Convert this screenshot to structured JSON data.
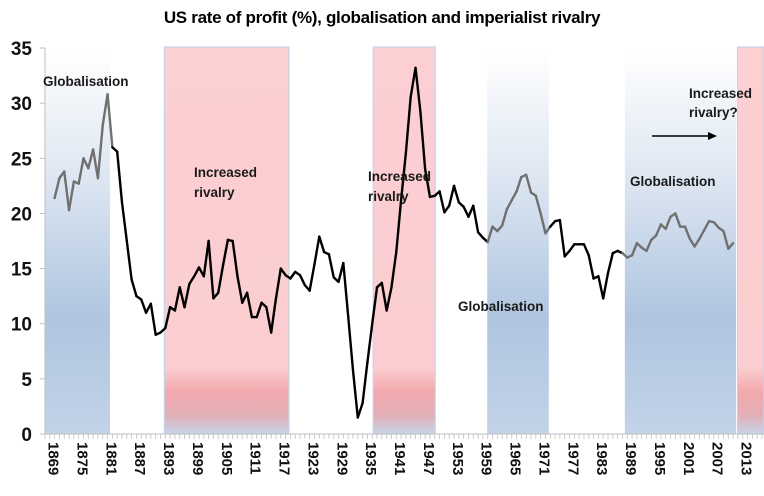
{
  "chart_data": {
    "type": "line",
    "title": "US rate of profit (%), globalisation and imperialist rivalry",
    "xlabel": "",
    "ylabel": "",
    "ylim": [
      0,
      35
    ],
    "xlim": [
      1867,
      2016
    ],
    "yticks": [
      0,
      5,
      10,
      15,
      20,
      25,
      30,
      35
    ],
    "xticks": [
      "1869",
      "1875",
      "1881",
      "1887",
      "1893",
      "1899",
      "1905",
      "1911",
      "1917",
      "1923",
      "1929",
      "1935",
      "1941",
      "1947",
      "1953",
      "1959",
      "1965",
      "1971",
      "1977",
      "1983",
      "1989",
      "1995",
      "2001",
      "2007",
      "2013"
    ],
    "grid": false,
    "legend": "none",
    "colors": {
      "line_default": "#000000",
      "line_globalisation": "#707070",
      "band_globalisation": "#b3c7e0",
      "band_rivalry": "#fccfd2",
      "band_rivalry_dark": "#f1a7ab"
    },
    "series": [
      {
        "name": "US rate of profit (%)",
        "x": [
          1869,
          1870,
          1871,
          1872,
          1873,
          1874,
          1875,
          1876,
          1877,
          1878,
          1879,
          1880,
          1881,
          1882,
          1883,
          1884,
          1885,
          1886,
          1887,
          1888,
          1889,
          1890,
          1891,
          1892,
          1893,
          1894,
          1895,
          1896,
          1897,
          1898,
          1899,
          1900,
          1901,
          1902,
          1903,
          1904,
          1905,
          1906,
          1907,
          1908,
          1909,
          1910,
          1911,
          1912,
          1913,
          1914,
          1915,
          1916,
          1917,
          1918,
          1919,
          1920,
          1921,
          1922,
          1923,
          1924,
          1925,
          1926,
          1927,
          1928,
          1929,
          1930,
          1931,
          1932,
          1933,
          1934,
          1935,
          1936,
          1937,
          1938,
          1939,
          1940,
          1941,
          1942,
          1943,
          1944,
          1945,
          1946,
          1947,
          1948,
          1949,
          1950,
          1951,
          1952,
          1953,
          1954,
          1955,
          1956,
          1957,
          1958,
          1959,
          1960,
          1961,
          1962,
          1963,
          1964,
          1965,
          1966,
          1967,
          1968,
          1969,
          1970,
          1971,
          1972,
          1973,
          1974,
          1975,
          1976,
          1977,
          1978,
          1979,
          1980,
          1981,
          1982,
          1983,
          1984,
          1985,
          1986,
          1987,
          1988,
          1989,
          1990,
          1991,
          1992,
          1993,
          1994,
          1995,
          1996,
          1997,
          1998,
          1999,
          2000,
          2001,
          2002,
          2003,
          2004,
          2005,
          2006,
          2007,
          2008,
          2009,
          2010
        ],
        "values": [
          21.4,
          23.2,
          23.8,
          20.3,
          22.9,
          22.7,
          25.0,
          24.1,
          25.8,
          23.2,
          28.0,
          30.8,
          26.0,
          25.6,
          21.0,
          17.5,
          14.0,
          12.5,
          12.2,
          11.0,
          11.8,
          9.0,
          9.2,
          9.6,
          11.5,
          11.2,
          13.3,
          11.5,
          13.6,
          14.3,
          15.1,
          14.3,
          17.5,
          12.3,
          12.8,
          15.3,
          17.6,
          17.5,
          14.3,
          11.9,
          12.8,
          10.6,
          10.6,
          11.9,
          11.5,
          9.2,
          12.3,
          15.0,
          14.4,
          14.1,
          14.7,
          14.4,
          13.5,
          13.0,
          15.4,
          17.9,
          16.5,
          16.3,
          14.2,
          13.8,
          15.5,
          10.7,
          5.8,
          1.5,
          2.8,
          6.5,
          10.0,
          13.3,
          13.7,
          11.2,
          13.3,
          16.5,
          21.2,
          25.5,
          30.6,
          33.2,
          29.3,
          24.0,
          21.5,
          21.6,
          22.0,
          20.1,
          20.7,
          22.5,
          21.0,
          20.6,
          19.7,
          20.7,
          18.3,
          17.8,
          17.4,
          18.8,
          18.4,
          18.9,
          20.4,
          21.2,
          22.0,
          23.3,
          23.5,
          21.9,
          21.6,
          20.0,
          18.2,
          18.8,
          19.3,
          19.4,
          16.1,
          16.6,
          17.2,
          17.2,
          17.2,
          16.2,
          14.1,
          14.3,
          12.3,
          14.6,
          16.4,
          16.6,
          16.4,
          16.0,
          16.2,
          17.3,
          16.9,
          16.6,
          17.6,
          18.0,
          19.0,
          18.6,
          19.7,
          20.0,
          18.8,
          18.8,
          17.7,
          17.0,
          17.7,
          18.5,
          19.3,
          19.2,
          18.7,
          18.4,
          16.8,
          17.3
        ]
      }
    ],
    "bands": [
      {
        "type": "globalisation",
        "from": 1867,
        "to": 1880.5,
        "label": "Globalisation"
      },
      {
        "type": "rivalry",
        "from": 1891.8,
        "to": 1917.7,
        "label": "Increased rivalry"
      },
      {
        "type": "rivalry",
        "from": 1935.2,
        "to": 1948.1,
        "label": "Increased rivalry"
      },
      {
        "type": "globalisation",
        "from": 1958.9,
        "to": 1971.7,
        "label": "Globalisation"
      },
      {
        "type": "globalisation",
        "from": 1987.5,
        "to": 2010.6,
        "label": "Globalisation"
      },
      {
        "type": "rivalry",
        "from": 2010.9,
        "to": 2018,
        "label": "Increased rivalry?"
      }
    ],
    "annotations": [
      {
        "id": "glob-1",
        "lines": [
          "Globalisation"
        ]
      },
      {
        "id": "rivalry-1",
        "lines": [
          "Increased",
          "rivalry"
        ]
      },
      {
        "id": "rivalry-2",
        "lines": [
          "Increased",
          "rivalry"
        ]
      },
      {
        "id": "glob-2",
        "lines": [
          "Globalisation"
        ]
      },
      {
        "id": "glob-3",
        "lines": [
          "Globalisation"
        ]
      },
      {
        "id": "rivalry-3",
        "lines": [
          "Increased",
          "rivalry?"
        ]
      },
      {
        "id": "arrow",
        "lines": []
      }
    ]
  }
}
